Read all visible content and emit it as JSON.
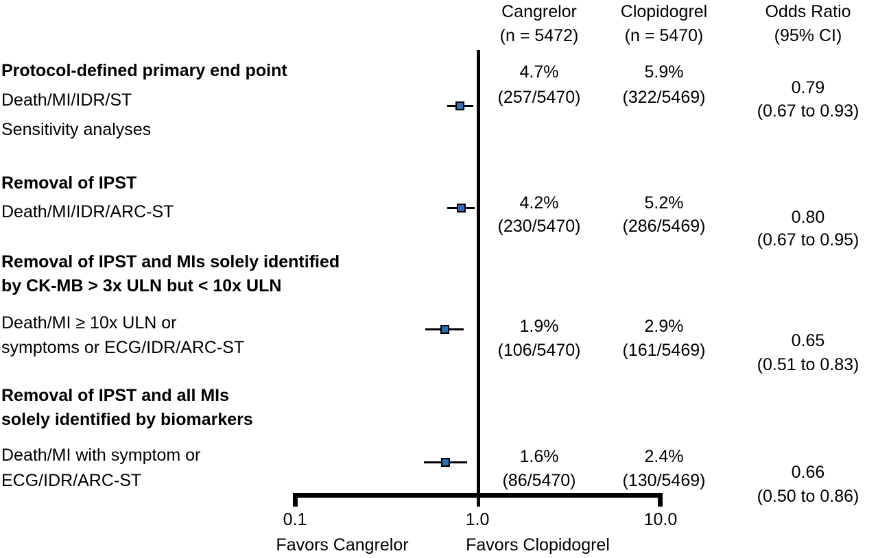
{
  "header": {
    "cangrelor_line1": "Cangrelor",
    "cangrelor_line2": "(n = 5472)",
    "clopidogrel_line1": "Clopidogrel",
    "clopidogrel_line2": "(n = 5470)",
    "or_line1": "Odds Ratio",
    "or_line2": "(95% CI)"
  },
  "labels": {
    "block1_title": "Protocol-defined primary end point",
    "block1_line1": "Death/MI/IDR/ST",
    "block1_line2": "Sensitivity analyses",
    "block2_title": "Removal of IPST",
    "block2_line1": "Death/MI/IDR/ARC-ST",
    "block3_title_line1": "Removal of IPST and MIs solely identified",
    "block3_title_line2": "by CK-MB > 3x ULN but < 10x ULN",
    "block3_line1": "Death/MI ≥ 10x ULN or",
    "block3_line2": "symptoms or ECG/IDR/ARC-ST",
    "block4_title_line1": "Removal of IPST and all MIs",
    "block4_title_line2": "solely identified by biomarkers",
    "block4_line1": "Death/MI with symptom or",
    "block4_line2": "ECG/IDR/ARC-ST"
  },
  "rows": [
    {
      "cangrelor_pct": "4.7%",
      "cangrelor_frac": "(257/5470)",
      "clopidogrel_pct": "5.9%",
      "clopidogrel_frac": "(322/5469)",
      "or": "0.79",
      "ci": "(0.67 to 0.93)"
    },
    {
      "cangrelor_pct": "4.2%",
      "cangrelor_frac": "(230/5470)",
      "clopidogrel_pct": "5.2%",
      "clopidogrel_frac": "(286/5469)",
      "or": "0.80",
      "ci": "(0.67 to 0.95)"
    },
    {
      "cangrelor_pct": "1.9%",
      "cangrelor_frac": "(106/5470)",
      "clopidogrel_pct": "2.9%",
      "clopidogrel_frac": "(161/5469)",
      "or": "0.65",
      "ci": "(0.51 to 0.83)"
    },
    {
      "cangrelor_pct": "1.6%",
      "cangrelor_frac": "(86/5470)",
      "clopidogrel_pct": "2.4%",
      "clopidogrel_frac": "(130/5469)",
      "or": "0.66",
      "ci": "(0.50 to 0.86)"
    }
  ],
  "axis": {
    "tick_left": "0.1",
    "tick_mid": "1.0",
    "tick_right": "10.0",
    "favors_left": "Favors Cangrelor",
    "favors_right": "Favors Clopidogrel"
  },
  "colors": {
    "marker_fill": "#2a72b5",
    "marker_border": "#000000",
    "line": "#000000"
  },
  "chart_data": {
    "type": "forest",
    "x_scale": "log10",
    "x_ticks": [
      0.1,
      1.0,
      10.0
    ],
    "x_range": [
      0.1,
      10.0
    ],
    "reference_line": 1.0,
    "favors_left_label": "Favors Cangrelor",
    "favors_right_label": "Favors Clopidogrel",
    "column_headers": [
      "Cangrelor (n = 5472)",
      "Clopidogrel (n = 5470)",
      "Odds Ratio (95% CI)"
    ],
    "series": [
      {
        "group": "Protocol-defined primary end point",
        "endpoint": "Death/MI/IDR/ST",
        "or": 0.79,
        "ci_low": 0.67,
        "ci_high": 0.93,
        "cangrelor_pct": 4.7,
        "cangrelor_events": 257,
        "cangrelor_n": 5470,
        "clopidogrel_pct": 5.9,
        "clopidogrel_events": 322,
        "clopidogrel_n": 5469
      },
      {
        "group": "Removal of IPST",
        "endpoint": "Death/MI/IDR/ARC-ST",
        "or": 0.8,
        "ci_low": 0.67,
        "ci_high": 0.95,
        "cangrelor_pct": 4.2,
        "cangrelor_events": 230,
        "cangrelor_n": 5470,
        "clopidogrel_pct": 5.2,
        "clopidogrel_events": 286,
        "clopidogrel_n": 5469
      },
      {
        "group": "Removal of IPST and MIs solely identified by CK-MB > 3x ULN but < 10x ULN",
        "endpoint": "Death/MI ≥ 10x ULN or symptoms or ECG/IDR/ARC-ST",
        "or": 0.65,
        "ci_low": 0.51,
        "ci_high": 0.83,
        "cangrelor_pct": 1.9,
        "cangrelor_events": 106,
        "cangrelor_n": 5470,
        "clopidogrel_pct": 2.9,
        "clopidogrel_events": 161,
        "clopidogrel_n": 5469
      },
      {
        "group": "Removal of IPST and all MIs solely identified by biomarkers",
        "endpoint": "Death/MI with symptom or ECG/IDR/ARC-ST",
        "or": 0.66,
        "ci_low": 0.5,
        "ci_high": 0.86,
        "cangrelor_pct": 1.6,
        "cangrelor_events": 86,
        "cangrelor_n": 5470,
        "clopidogrel_pct": 2.4,
        "clopidogrel_events": 130,
        "clopidogrel_n": 5469
      }
    ]
  }
}
